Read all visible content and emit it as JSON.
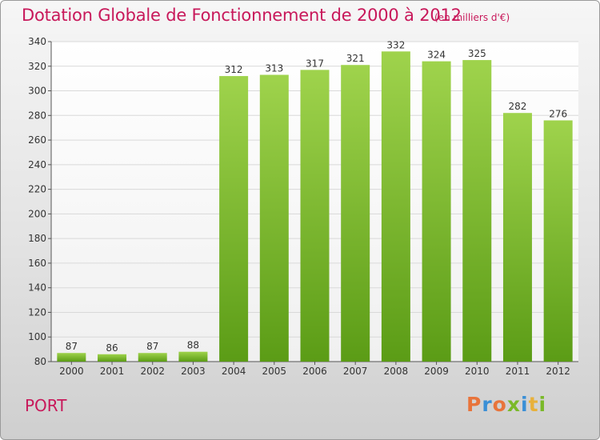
{
  "header": {
    "title": "Dotation Globale de Fonctionnement de 2000 à 2012",
    "unit": "(en milliers d'€)"
  },
  "footer": {
    "commune": "PORT",
    "logo": "Proxiti",
    "logo_colors": [
      "#e8743b",
      "#3a8fd6",
      "#e8743b",
      "#7ab929",
      "#3a8fd6",
      "#e8b13b",
      "#7ab929"
    ]
  },
  "colors": {
    "title": "#c8185a",
    "bar_light": "#9fd34c",
    "bar_dark": "#5b9c16",
    "grid": "#d9d9d9",
    "axis": "#555555"
  },
  "chart_data": {
    "type": "bar",
    "categories": [
      "2000",
      "2001",
      "2002",
      "2003",
      "2004",
      "2005",
      "2006",
      "2007",
      "2008",
      "2009",
      "2010",
      "2011",
      "2012"
    ],
    "values": [
      87,
      86,
      87,
      88,
      312,
      313,
      317,
      321,
      332,
      324,
      325,
      282,
      276
    ],
    "data_labels": [
      "87",
      "86",
      "87",
      "88",
      "312",
      "313",
      "317",
      "321",
      "332",
      "324",
      "325",
      "282",
      "276"
    ],
    "ylim": [
      80,
      340
    ],
    "yticks": [
      80,
      100,
      120,
      140,
      160,
      180,
      200,
      220,
      240,
      260,
      280,
      300,
      320,
      340
    ],
    "grid": true
  }
}
